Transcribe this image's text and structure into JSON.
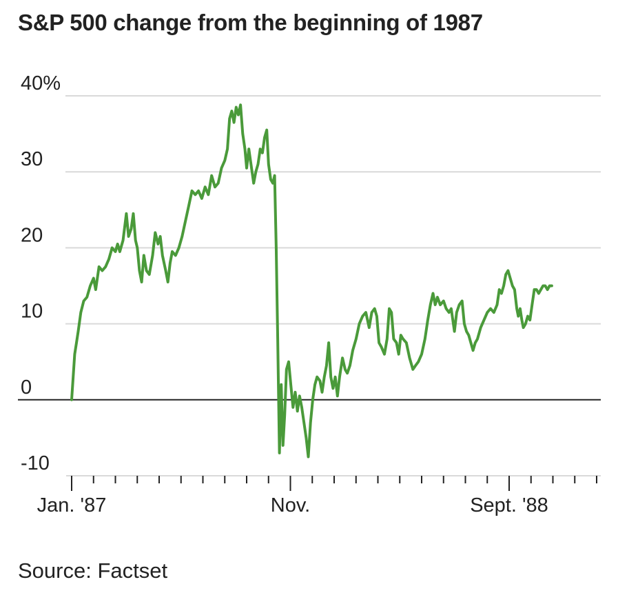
{
  "title": "S&P 500 change from the beginning of 1987",
  "source": "Source: Factset",
  "colors": {
    "line": "#4a9a3a",
    "grid": "#d9d9d9",
    "zero": "#222222",
    "text": "#222222"
  },
  "chart_data": {
    "type": "line",
    "title": "S&P 500 change from the beginning of 1987",
    "xlabel": "",
    "ylabel": "",
    "ylim": [
      -10,
      40
    ],
    "yticks": [
      -10,
      0,
      10,
      20,
      30,
      40
    ],
    "ytick_labels": [
      "-10",
      "0",
      "10",
      "20",
      "30",
      "40%"
    ],
    "xlim": [
      0,
      24
    ],
    "xtick_count": 25,
    "xtick_labels": [
      {
        "x": 0,
        "label": "Jan. '87"
      },
      {
        "x": 10,
        "label": "Nov."
      },
      {
        "x": 20,
        "label": "Sept. '88"
      }
    ],
    "grid": true,
    "series": [
      {
        "values": [
          [
            0.0,
            0.0
          ],
          [
            0.07,
            3.0
          ],
          [
            0.14,
            6.0
          ],
          [
            0.22,
            7.5
          ],
          [
            0.3,
            9.0
          ],
          [
            0.42,
            11.5
          ],
          [
            0.55,
            13.0
          ],
          [
            0.7,
            13.5
          ],
          [
            0.85,
            15.0
          ],
          [
            1.0,
            16.0
          ],
          [
            1.1,
            14.5
          ],
          [
            1.25,
            17.5
          ],
          [
            1.4,
            17.0
          ],
          [
            1.55,
            17.5
          ],
          [
            1.7,
            18.5
          ],
          [
            1.85,
            20.0
          ],
          [
            2.0,
            19.5
          ],
          [
            2.1,
            20.5
          ],
          [
            2.2,
            19.5
          ],
          [
            2.35,
            21.0
          ],
          [
            2.5,
            24.5
          ],
          [
            2.6,
            21.5
          ],
          [
            2.72,
            22.5
          ],
          [
            2.82,
            24.5
          ],
          [
            2.92,
            21.0
          ],
          [
            3.0,
            20.0
          ],
          [
            3.1,
            17.0
          ],
          [
            3.2,
            15.5
          ],
          [
            3.3,
            19.0
          ],
          [
            3.42,
            17.0
          ],
          [
            3.55,
            16.5
          ],
          [
            3.7,
            19.0
          ],
          [
            3.82,
            22.0
          ],
          [
            3.95,
            20.5
          ],
          [
            4.05,
            21.5
          ],
          [
            4.15,
            19.0
          ],
          [
            4.3,
            17.0
          ],
          [
            4.4,
            15.5
          ],
          [
            4.5,
            18.0
          ],
          [
            4.6,
            19.5
          ],
          [
            4.75,
            19.0
          ],
          [
            4.9,
            20.0
          ],
          [
            5.05,
            21.5
          ],
          [
            5.2,
            23.5
          ],
          [
            5.35,
            25.5
          ],
          [
            5.5,
            27.5
          ],
          [
            5.65,
            27.0
          ],
          [
            5.8,
            27.5
          ],
          [
            5.95,
            26.5
          ],
          [
            6.1,
            28.0
          ],
          [
            6.25,
            27.0
          ],
          [
            6.4,
            29.5
          ],
          [
            6.55,
            28.0
          ],
          [
            6.7,
            28.5
          ],
          [
            6.85,
            30.5
          ],
          [
            7.0,
            31.5
          ],
          [
            7.12,
            33.0
          ],
          [
            7.22,
            37.0
          ],
          [
            7.32,
            38.0
          ],
          [
            7.42,
            36.5
          ],
          [
            7.52,
            38.5
          ],
          [
            7.62,
            37.5
          ],
          [
            7.72,
            38.8
          ],
          [
            7.82,
            35.0
          ],
          [
            7.92,
            33.0
          ],
          [
            8.0,
            30.5
          ],
          [
            8.1,
            33.0
          ],
          [
            8.2,
            31.0
          ],
          [
            8.32,
            28.5
          ],
          [
            8.42,
            30.0
          ],
          [
            8.52,
            31.0
          ],
          [
            8.62,
            33.0
          ],
          [
            8.72,
            32.5
          ],
          [
            8.82,
            34.5
          ],
          [
            8.92,
            35.5
          ],
          [
            9.0,
            31.0
          ],
          [
            9.1,
            29.0
          ],
          [
            9.2,
            28.5
          ],
          [
            9.28,
            29.5
          ],
          [
            9.35,
            20.0
          ],
          [
            9.42,
            8.0
          ],
          [
            9.5,
            -7.0
          ],
          [
            9.58,
            2.0
          ],
          [
            9.66,
            -6.0
          ],
          [
            9.74,
            -2.0
          ],
          [
            9.82,
            4.0
          ],
          [
            9.92,
            5.0
          ],
          [
            10.02,
            2.0
          ],
          [
            10.12,
            -1.0
          ],
          [
            10.22,
            1.0
          ],
          [
            10.32,
            -1.5
          ],
          [
            10.42,
            0.5
          ],
          [
            10.52,
            -1.0
          ],
          [
            10.62,
            -3.0
          ],
          [
            10.72,
            -5.0
          ],
          [
            10.82,
            -7.5
          ],
          [
            10.92,
            -3.0
          ],
          [
            11.02,
            0.0
          ],
          [
            11.12,
            2.0
          ],
          [
            11.22,
            3.0
          ],
          [
            11.35,
            2.5
          ],
          [
            11.45,
            1.0
          ],
          [
            11.55,
            3.0
          ],
          [
            11.65,
            4.5
          ],
          [
            11.75,
            7.5
          ],
          [
            11.85,
            3.0
          ],
          [
            11.95,
            1.5
          ],
          [
            12.05,
            3.0
          ],
          [
            12.15,
            0.5
          ],
          [
            12.25,
            3.0
          ],
          [
            12.38,
            5.5
          ],
          [
            12.5,
            4.0
          ],
          [
            12.6,
            3.5
          ],
          [
            12.72,
            4.5
          ],
          [
            12.85,
            6.5
          ],
          [
            13.0,
            8.0
          ],
          [
            13.15,
            10.0
          ],
          [
            13.3,
            11.0
          ],
          [
            13.45,
            11.5
          ],
          [
            13.6,
            9.5
          ],
          [
            13.72,
            11.5
          ],
          [
            13.85,
            12.0
          ],
          [
            13.95,
            11.0
          ],
          [
            14.05,
            7.5
          ],
          [
            14.15,
            7.0
          ],
          [
            14.3,
            6.0
          ],
          [
            14.42,
            8.0
          ],
          [
            14.52,
            12.0
          ],
          [
            14.62,
            11.5
          ],
          [
            14.72,
            8.0
          ],
          [
            14.85,
            7.5
          ],
          [
            14.95,
            6.0
          ],
          [
            15.05,
            8.5
          ],
          [
            15.15,
            8.0
          ],
          [
            15.3,
            7.5
          ],
          [
            15.45,
            5.5
          ],
          [
            15.6,
            4.0
          ],
          [
            15.72,
            4.5
          ],
          [
            15.85,
            5.0
          ],
          [
            16.0,
            6.0
          ],
          [
            16.15,
            8.0
          ],
          [
            16.28,
            10.5
          ],
          [
            16.4,
            12.5
          ],
          [
            16.52,
            14.0
          ],
          [
            16.62,
            12.5
          ],
          [
            16.72,
            13.5
          ],
          [
            16.85,
            12.5
          ],
          [
            17.0,
            13.0
          ],
          [
            17.12,
            12.0
          ],
          [
            17.25,
            11.5
          ],
          [
            17.35,
            12.0
          ],
          [
            17.5,
            9.0
          ],
          [
            17.6,
            11.5
          ],
          [
            17.72,
            12.5
          ],
          [
            17.85,
            13.0
          ],
          [
            17.95,
            10.0
          ],
          [
            18.05,
            9.0
          ],
          [
            18.15,
            8.5
          ],
          [
            18.25,
            7.5
          ],
          [
            18.35,
            6.5
          ],
          [
            18.45,
            7.5
          ],
          [
            18.55,
            8.0
          ],
          [
            18.7,
            9.5
          ],
          [
            18.85,
            10.5
          ],
          [
            19.0,
            11.5
          ],
          [
            19.15,
            12.0
          ],
          [
            19.3,
            11.5
          ],
          [
            19.45,
            12.5
          ],
          [
            19.55,
            14.5
          ],
          [
            19.65,
            14.0
          ],
          [
            19.75,
            15.0
          ],
          [
            19.85,
            16.5
          ],
          [
            19.95,
            17.0
          ],
          [
            20.05,
            16.0
          ],
          [
            20.15,
            15.0
          ],
          [
            20.25,
            14.5
          ],
          [
            20.35,
            12.0
          ],
          [
            20.42,
            11.0
          ],
          [
            20.5,
            12.0
          ],
          [
            20.58,
            10.5
          ],
          [
            20.65,
            9.5
          ],
          [
            20.75,
            10.0
          ],
          [
            20.85,
            11.0
          ],
          [
            20.95,
            10.5
          ],
          [
            21.05,
            12.5
          ],
          [
            21.15,
            14.5
          ],
          [
            21.25,
            14.5
          ],
          [
            21.35,
            14.0
          ],
          [
            21.45,
            14.5
          ],
          [
            21.55,
            15.0
          ],
          [
            21.65,
            15.0
          ],
          [
            21.75,
            14.5
          ],
          [
            21.85,
            15.0
          ],
          [
            21.95,
            15.0
          ]
        ]
      }
    ]
  }
}
